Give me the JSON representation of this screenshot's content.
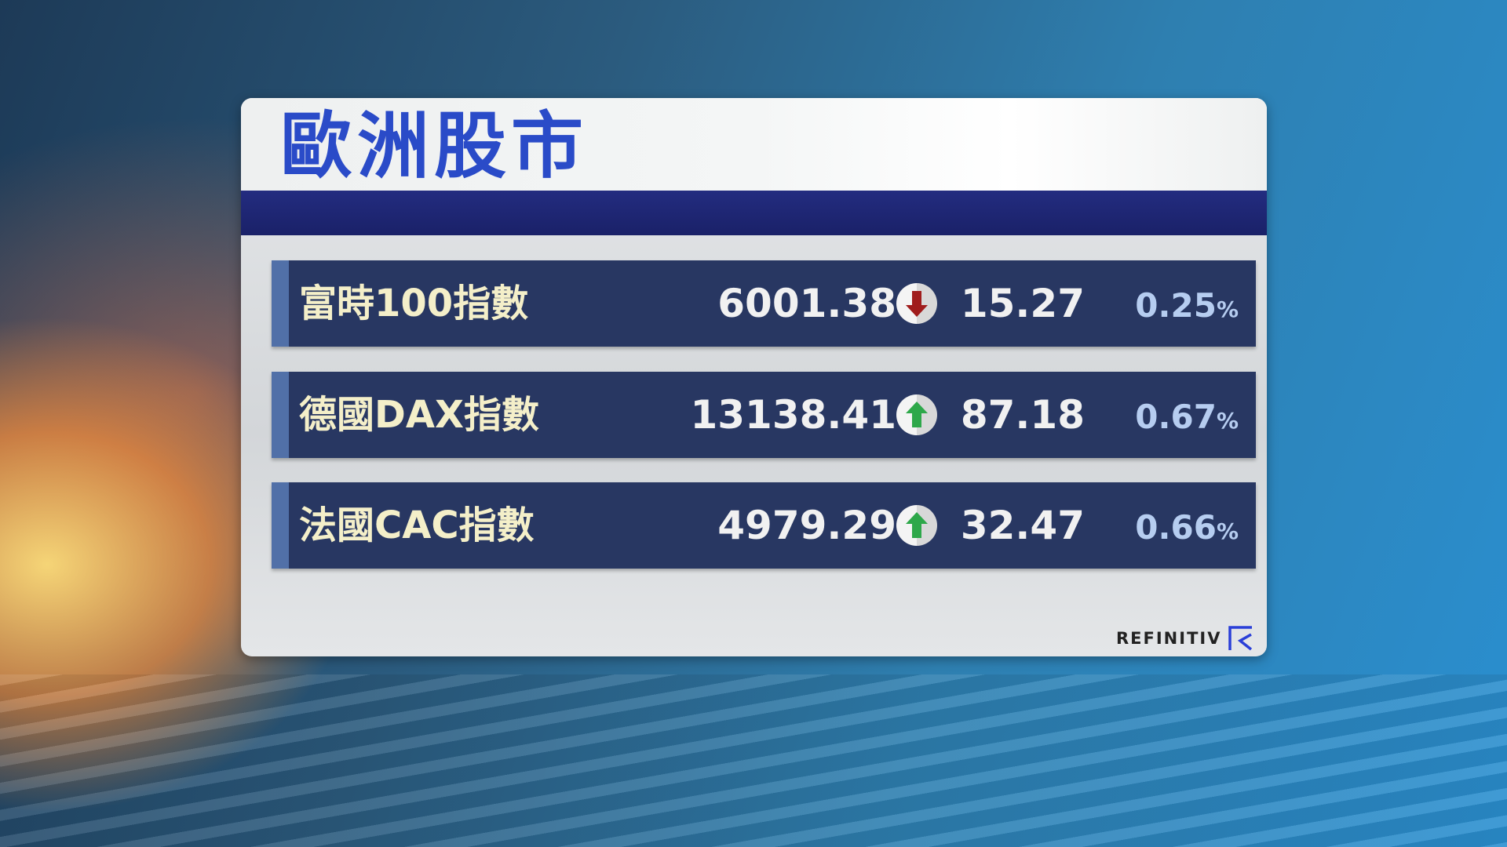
{
  "title": "歐洲股市",
  "rows": [
    {
      "name": "富時100指數",
      "value": "6001.38",
      "direction": "down",
      "change": "15.27",
      "percent": "0.25",
      "percent_sign": "%"
    },
    {
      "name": "德國DAX指數",
      "value": "13138.41",
      "direction": "up",
      "change": "87.18",
      "percent": "0.67",
      "percent_sign": "%"
    },
    {
      "name": "法國CAC指數",
      "value": "4979.29",
      "direction": "up",
      "change": "32.47",
      "percent": "0.66",
      "percent_sign": "%"
    }
  ],
  "colors": {
    "up": "#2ea84a",
    "down": "#a01c1c",
    "title": "#2a4bc8",
    "band": "#1c2470"
  },
  "source_logo": "REFINITIV"
}
